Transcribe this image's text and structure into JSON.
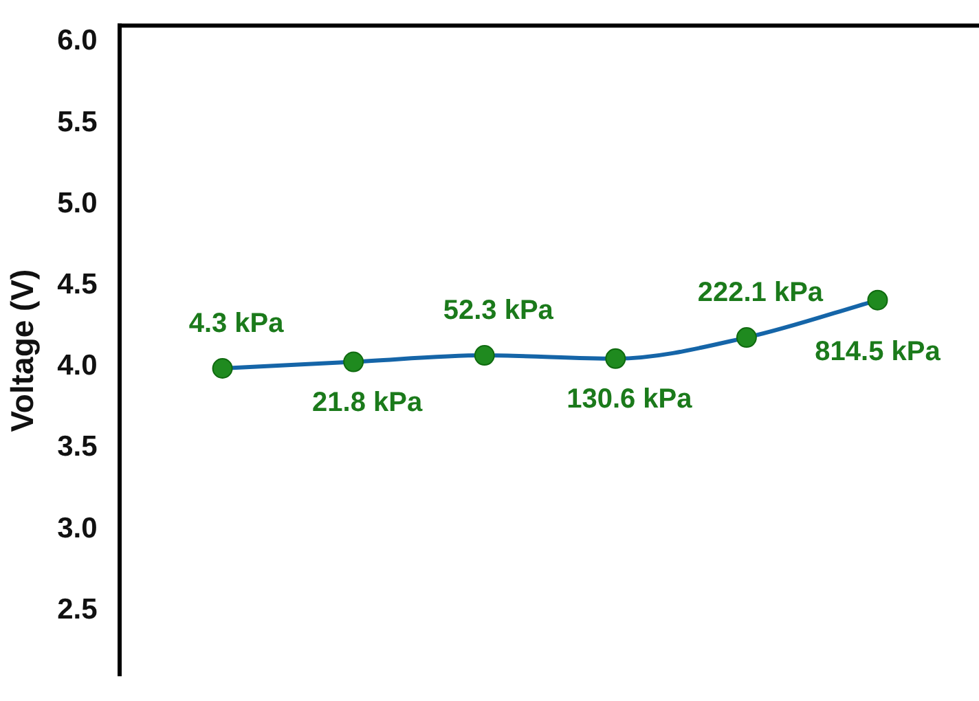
{
  "chart_data": {
    "type": "line",
    "ylabel": "Voltage (V)",
    "categories": [
      null,
      null,
      null,
      null,
      null,
      null
    ],
    "series": [
      {
        "color": "#1565a8",
        "values": [
          3.99,
          4.03,
          4.07,
          4.05,
          4.18,
          4.41
        ]
      }
    ],
    "ylim": [
      2.1,
      6.1
    ],
    "yticks": [
      2.5,
      {
        "value": 3,
        "label": "3.0"
      },
      3.5,
      {
        "value": 4,
        "label": "4.0"
      },
      4.5,
      {
        "value": 5,
        "label": "5.0"
      },
      5.5,
      {
        "value": 6,
        "label": "6.0"
      }
    ],
    "annotations": [
      "4.3 kPa",
      "21.8 kPa",
      "52.3 kPa",
      "130.6 kPa",
      "222.1 kPa",
      "814.5 kPa"
    ],
    "marker": "circle",
    "grid": false,
    "legend": false,
    "tick_labels": "y"
  }
}
